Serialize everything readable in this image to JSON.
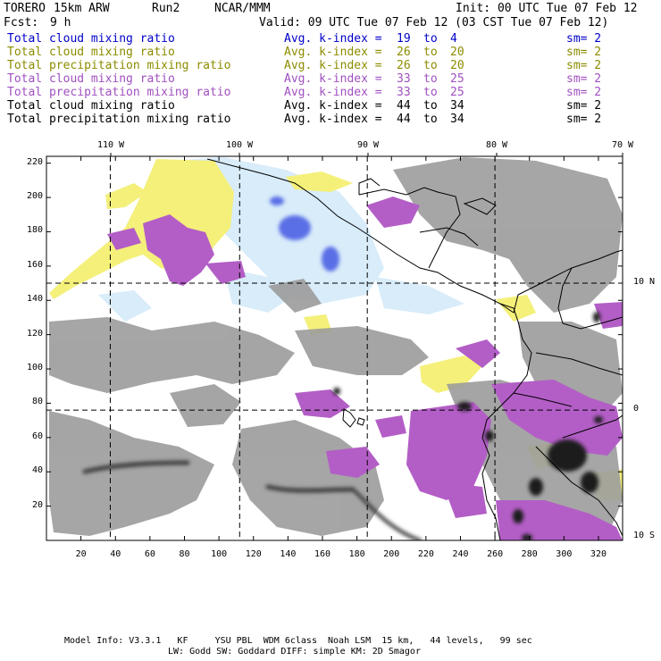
{
  "header": {
    "model": "TORERO",
    "resolution": "15km ARW",
    "run": "Run2",
    "org": "NCAR/MMM",
    "init": "Init: 00 UTC Tue 07 Feb 12",
    "fcst_label": "Fcst:",
    "fcst_value": "9 h",
    "valid": "Valid: 09 UTC Tue 07 Feb 12 (03 CST Tue 07 Feb 12)"
  },
  "legend": [
    {
      "field": "Total cloud mixing ratio",
      "stat": "Avg. k-index =",
      "k1": "19",
      "to": "to",
      "k2": "4",
      "sm": "sm= 2",
      "color": "#0000c8"
    },
    {
      "field": "Total cloud mixing ratio",
      "stat": "Avg. k-index =",
      "k1": "26",
      "to": "to",
      "k2": "20",
      "sm": "sm= 2",
      "color": "#8c8c00"
    },
    {
      "field": "Total precipitation mixing ratio",
      "stat": "Avg. k-index =",
      "k1": "26",
      "to": "to",
      "k2": "20",
      "sm": "sm= 2",
      "color": "#8c8c00"
    },
    {
      "field": "Total cloud mixing ratio",
      "stat": "Avg. k-index =",
      "k1": "33",
      "to": "to",
      "k2": "25",
      "sm": "sm= 2",
      "color": "#a050c0"
    },
    {
      "field": "Total precipitation mixing ratio",
      "stat": "Avg. k-index =",
      "k1": "33",
      "to": "to",
      "k2": "25",
      "sm": "sm= 2",
      "color": "#a050c0"
    },
    {
      "field": "Total cloud mixing ratio",
      "stat": "Avg. k-index =",
      "k1": "44",
      "to": "to",
      "k2": "34",
      "sm": "sm= 2",
      "color": "#000000"
    },
    {
      "field": "Total precipitation mixing ratio",
      "stat": "Avg. k-index =",
      "k1": "44",
      "to": "to",
      "k2": "34",
      "sm": "sm= 2",
      "color": "#000000"
    }
  ],
  "map": {
    "lon_labels": [
      "110 W",
      "100 W",
      "90 W",
      "80 W",
      "70 W"
    ],
    "lat_labels": [
      "10 N",
      "0",
      "10 S"
    ],
    "x_ticks": [
      "20",
      "40",
      "60",
      "80",
      "100",
      "120",
      "140",
      "160",
      "180",
      "200",
      "220",
      "240",
      "260",
      "280",
      "300",
      "320"
    ],
    "y_ticks": [
      "20",
      "40",
      "60",
      "80",
      "100",
      "120",
      "140",
      "160",
      "180",
      "200",
      "220"
    ],
    "x_range": [
      0,
      334
    ],
    "y_range": [
      0,
      224
    ],
    "grid_x": [
      37,
      112,
      186,
      260
    ],
    "grid_y": [
      76,
      150
    ]
  },
  "footer": {
    "line1": "Model Info: V3.3.1   KF     YSU PBL  WDM 6class  Noah LSM  15 km,   44 levels,   99 sec",
    "line2": "LW: Godd SW: Goddard DIFF: simple KM: 2D Smagor"
  }
}
